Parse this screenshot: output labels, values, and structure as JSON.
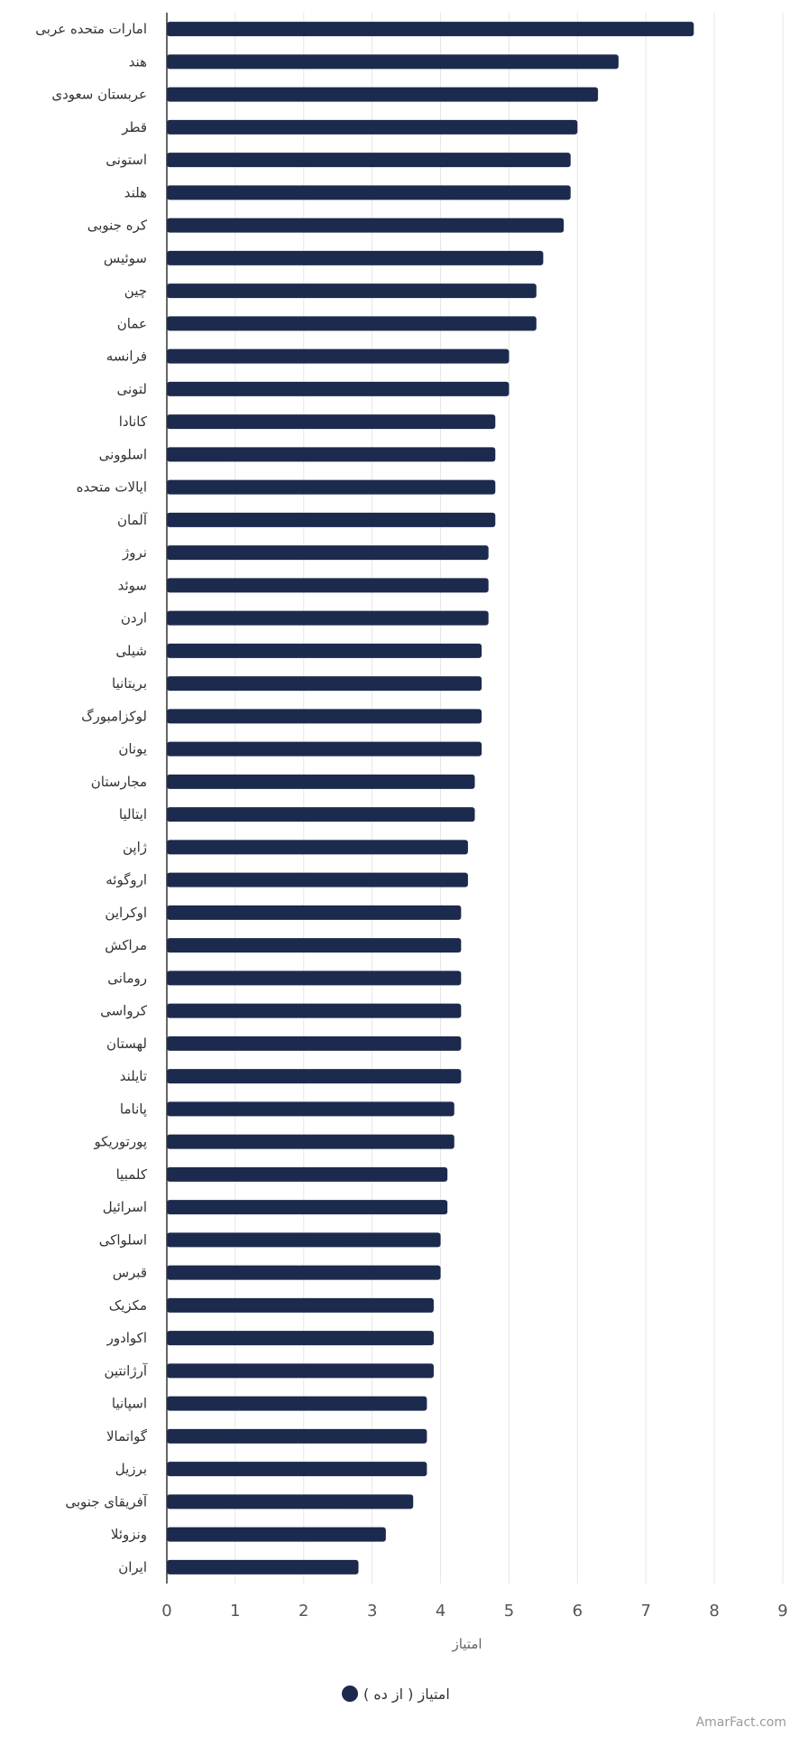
{
  "chart_data": {
    "type": "bar",
    "orientation": "horizontal",
    "categories": [
      "امارات متحده عربی",
      "هند",
      "عربستان سعودی",
      "قطر",
      "استونی",
      "هلند",
      "کره جنوبی",
      "سوئیس",
      "چین",
      "عمان",
      "فرانسه",
      "لتونی",
      "کانادا",
      "اسلوونی",
      "ایالات متحده",
      "آلمان",
      "نروژ",
      "سوئد",
      "اردن",
      "شیلی",
      "بریتانیا",
      "لوکزامبورگ",
      "یونان",
      "مجارستان",
      "ایتالیا",
      "ژاپن",
      "اروگوئه",
      "اوکراین",
      "مراکش",
      "رومانی",
      "کرواسی",
      "لهستان",
      "تایلند",
      "پاناما",
      "پورتوریکو",
      "کلمبیا",
      "اسرائیل",
      "اسلواکی",
      "قبرس",
      "مکزیک",
      "اکوادور",
      "آرژانتین",
      "اسپانیا",
      "گواتمالا",
      "برزیل",
      "آفریقای جنوبی",
      "ونزوئلا",
      "ایران"
    ],
    "series": [
      {
        "name": "امتیاز ( از ده )",
        "color": "#1c2a4e",
        "values": [
          7.7,
          6.6,
          6.3,
          6.0,
          5.9,
          5.9,
          5.8,
          5.5,
          5.4,
          5.4,
          5.0,
          5.0,
          4.8,
          4.8,
          4.8,
          4.8,
          4.7,
          4.7,
          4.7,
          4.6,
          4.6,
          4.6,
          4.6,
          4.5,
          4.5,
          4.4,
          4.4,
          4.3,
          4.3,
          4.3,
          4.3,
          4.3,
          4.3,
          4.2,
          4.2,
          4.1,
          4.1,
          4.0,
          4.0,
          3.9,
          3.9,
          3.9,
          3.8,
          3.8,
          3.8,
          3.6,
          3.2,
          2.8
        ]
      }
    ],
    "xlabel": "امتیاز",
    "xlim": [
      0,
      9
    ],
    "xticks": [
      0,
      1,
      2,
      3,
      4,
      5,
      6,
      7,
      8,
      9
    ],
    "grid": true,
    "legend_position": "bottom-center"
  },
  "watermark": "AmarFact.com"
}
